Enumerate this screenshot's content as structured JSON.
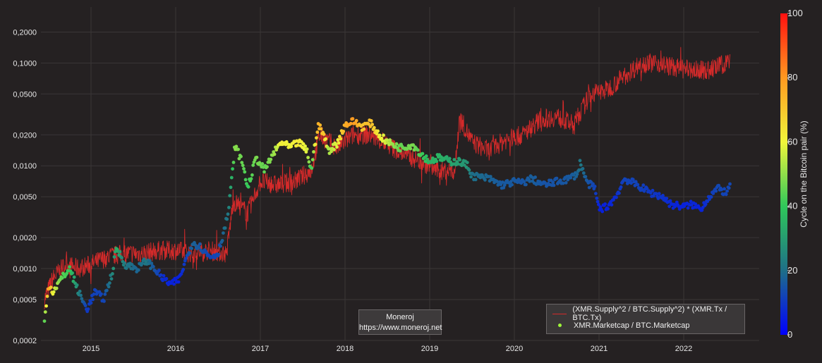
{
  "chart_data": {
    "type": "line+scatter",
    "title": "",
    "xlabel": "",
    "ylabel": "",
    "y_scale": "log",
    "ylim": [
      0.0002,
      0.35
    ],
    "x_range": [
      "2014-06-01",
      "2022-10-15"
    ],
    "y_ticks": [
      {
        "v": 0.2,
        "label": "0,2000"
      },
      {
        "v": 0.1,
        "label": "0,1000"
      },
      {
        "v": 0.05,
        "label": "0,0500"
      },
      {
        "v": 0.02,
        "label": "0,0200"
      },
      {
        "v": 0.01,
        "label": "0,0100"
      },
      {
        "v": 0.005,
        "label": "0,0050"
      },
      {
        "v": 0.002,
        "label": "0,0020"
      },
      {
        "v": 0.001,
        "label": "0,0010"
      },
      {
        "v": 0.0005,
        "label": "0,0005"
      },
      {
        "v": 0.0002,
        "label": "0,0002"
      }
    ],
    "x_ticks": [
      "2015",
      "2016",
      "2017",
      "2018",
      "2019",
      "2020",
      "2021",
      "2022"
    ],
    "grid": true,
    "series": [
      {
        "name": "(XMR.Supply^2 / BTC.Supply^2) * (XMR.Tx / BTC.Tx)",
        "kind": "line",
        "color": "#d42a2a",
        "anchors": [
          [
            2014.45,
            0.0005
          ],
          [
            2014.55,
            0.0008
          ],
          [
            2014.7,
            0.0011
          ],
          [
            2014.85,
            0.001
          ],
          [
            2015.0,
            0.0011
          ],
          [
            2015.2,
            0.0013
          ],
          [
            2015.4,
            0.0014
          ],
          [
            2015.6,
            0.0014
          ],
          [
            2015.8,
            0.0015
          ],
          [
            2016.0,
            0.0015
          ],
          [
            2016.2,
            0.0014
          ],
          [
            2016.4,
            0.0015
          ],
          [
            2016.6,
            0.0014
          ],
          [
            2016.68,
            0.0045
          ],
          [
            2016.85,
            0.0035
          ],
          [
            2017.0,
            0.007
          ],
          [
            2017.2,
            0.0065
          ],
          [
            2017.4,
            0.007
          ],
          [
            2017.6,
            0.009
          ],
          [
            2017.7,
            0.02
          ],
          [
            2017.9,
            0.015
          ],
          [
            2018.1,
            0.02
          ],
          [
            2018.3,
            0.02
          ],
          [
            2018.5,
            0.016
          ],
          [
            2018.7,
            0.013
          ],
          [
            2018.9,
            0.011
          ],
          [
            2019.1,
            0.009
          ],
          [
            2019.3,
            0.009
          ],
          [
            2019.35,
            0.03
          ],
          [
            2019.5,
            0.017
          ],
          [
            2019.7,
            0.014
          ],
          [
            2019.9,
            0.018
          ],
          [
            2020.1,
            0.02
          ],
          [
            2020.3,
            0.028
          ],
          [
            2020.5,
            0.03
          ],
          [
            2020.7,
            0.025
          ],
          [
            2020.9,
            0.05
          ],
          [
            2021.1,
            0.055
          ],
          [
            2021.3,
            0.075
          ],
          [
            2021.5,
            0.1
          ],
          [
            2021.7,
            0.1
          ],
          [
            2021.9,
            0.09
          ],
          [
            2022.1,
            0.085
          ],
          [
            2022.3,
            0.085
          ],
          [
            2022.5,
            0.1
          ],
          [
            2022.55,
            0.11
          ]
        ]
      },
      {
        "name": "XMR.Marketcap / BTC.Marketcap",
        "kind": "scatter",
        "color": "#9ef53a",
        "anchors": [
          [
            2014.45,
            0.0003,
            45
          ],
          [
            2014.5,
            0.0007,
            80
          ],
          [
            2014.55,
            0.0006,
            60
          ],
          [
            2014.65,
            0.0008,
            45
          ],
          [
            2014.75,
            0.001,
            40
          ],
          [
            2014.85,
            0.0006,
            25
          ],
          [
            2014.95,
            0.0004,
            10
          ],
          [
            2015.05,
            0.0006,
            12
          ],
          [
            2015.15,
            0.0005,
            12
          ],
          [
            2015.25,
            0.0009,
            25
          ],
          [
            2015.3,
            0.0016,
            35
          ],
          [
            2015.4,
            0.0011,
            22
          ],
          [
            2015.55,
            0.001,
            18
          ],
          [
            2015.65,
            0.0012,
            22
          ],
          [
            2015.75,
            0.001,
            15
          ],
          [
            2015.85,
            0.0008,
            8
          ],
          [
            2015.95,
            0.0007,
            6
          ],
          [
            2016.05,
            0.0008,
            6
          ],
          [
            2016.1,
            0.0011,
            10
          ],
          [
            2016.2,
            0.0018,
            18
          ],
          [
            2016.3,
            0.0016,
            15
          ],
          [
            2016.4,
            0.0013,
            12
          ],
          [
            2016.5,
            0.0014,
            13
          ],
          [
            2016.58,
            0.0025,
            20
          ],
          [
            2016.62,
            0.0035,
            22
          ],
          [
            2016.66,
            0.007,
            35
          ],
          [
            2016.7,
            0.016,
            50
          ],
          [
            2016.8,
            0.01,
            45
          ],
          [
            2016.85,
            0.006,
            40
          ],
          [
            2016.95,
            0.012,
            48
          ],
          [
            2017.05,
            0.009,
            45
          ],
          [
            2017.15,
            0.013,
            50
          ],
          [
            2017.25,
            0.017,
            62
          ],
          [
            2017.35,
            0.015,
            60
          ],
          [
            2017.45,
            0.017,
            63
          ],
          [
            2017.55,
            0.014,
            58
          ],
          [
            2017.6,
            0.009,
            40
          ],
          [
            2017.68,
            0.025,
            75
          ],
          [
            2017.75,
            0.02,
            70
          ],
          [
            2017.8,
            0.014,
            52
          ],
          [
            2017.9,
            0.016,
            58
          ],
          [
            2018.0,
            0.025,
            75
          ],
          [
            2018.1,
            0.027,
            80
          ],
          [
            2018.2,
            0.024,
            70
          ],
          [
            2018.3,
            0.026,
            72
          ],
          [
            2018.4,
            0.02,
            62
          ],
          [
            2018.5,
            0.017,
            55
          ],
          [
            2018.65,
            0.015,
            45
          ],
          [
            2018.8,
            0.016,
            48
          ],
          [
            2018.9,
            0.013,
            42
          ],
          [
            2019.0,
            0.011,
            35
          ],
          [
            2019.1,
            0.012,
            36
          ],
          [
            2019.25,
            0.011,
            32
          ],
          [
            2019.35,
            0.011,
            30
          ],
          [
            2019.45,
            0.01,
            28
          ],
          [
            2019.5,
            0.008,
            20
          ],
          [
            2019.7,
            0.0075,
            18
          ],
          [
            2019.85,
            0.0065,
            16
          ],
          [
            2020.0,
            0.007,
            16
          ],
          [
            2020.1,
            0.0068,
            15
          ],
          [
            2020.2,
            0.0075,
            17
          ],
          [
            2020.35,
            0.0065,
            15
          ],
          [
            2020.5,
            0.007,
            15
          ],
          [
            2020.65,
            0.0075,
            16
          ],
          [
            2020.75,
            0.0085,
            18
          ],
          [
            2020.78,
            0.011,
            22
          ],
          [
            2020.85,
            0.007,
            16
          ],
          [
            2020.95,
            0.006,
            12
          ],
          [
            2021.0,
            0.0038,
            6
          ],
          [
            2021.1,
            0.004,
            6
          ],
          [
            2021.2,
            0.005,
            8
          ],
          [
            2021.3,
            0.0075,
            12
          ],
          [
            2021.45,
            0.0065,
            12
          ],
          [
            2021.6,
            0.0055,
            10
          ],
          [
            2021.75,
            0.005,
            9
          ],
          [
            2021.85,
            0.0042,
            7
          ],
          [
            2022.0,
            0.004,
            6
          ],
          [
            2022.1,
            0.0042,
            7
          ],
          [
            2022.2,
            0.0038,
            6
          ],
          [
            2022.3,
            0.005,
            10
          ],
          [
            2022.4,
            0.006,
            13
          ],
          [
            2022.5,
            0.0055,
            12
          ],
          [
            2022.55,
            0.0062,
            13
          ]
        ]
      }
    ],
    "colorbar": {
      "title": "Cycle on the Bitcoin pair (%)",
      "min": 0,
      "max": 100,
      "ticks": [
        "0",
        "20",
        "40",
        "60",
        "80",
        "100"
      ]
    },
    "legend_position": "bottom-right"
  },
  "watermark": {
    "line1": "Moneroj",
    "line2": "https://www.moneroj.net"
  },
  "legend": {
    "line_label": "(XMR.Supply^2 / BTC.Supply^2) * (XMR.Tx / BTC.Tx)",
    "dot_label": "XMR.Marketcap / BTC.Marketcap"
  }
}
